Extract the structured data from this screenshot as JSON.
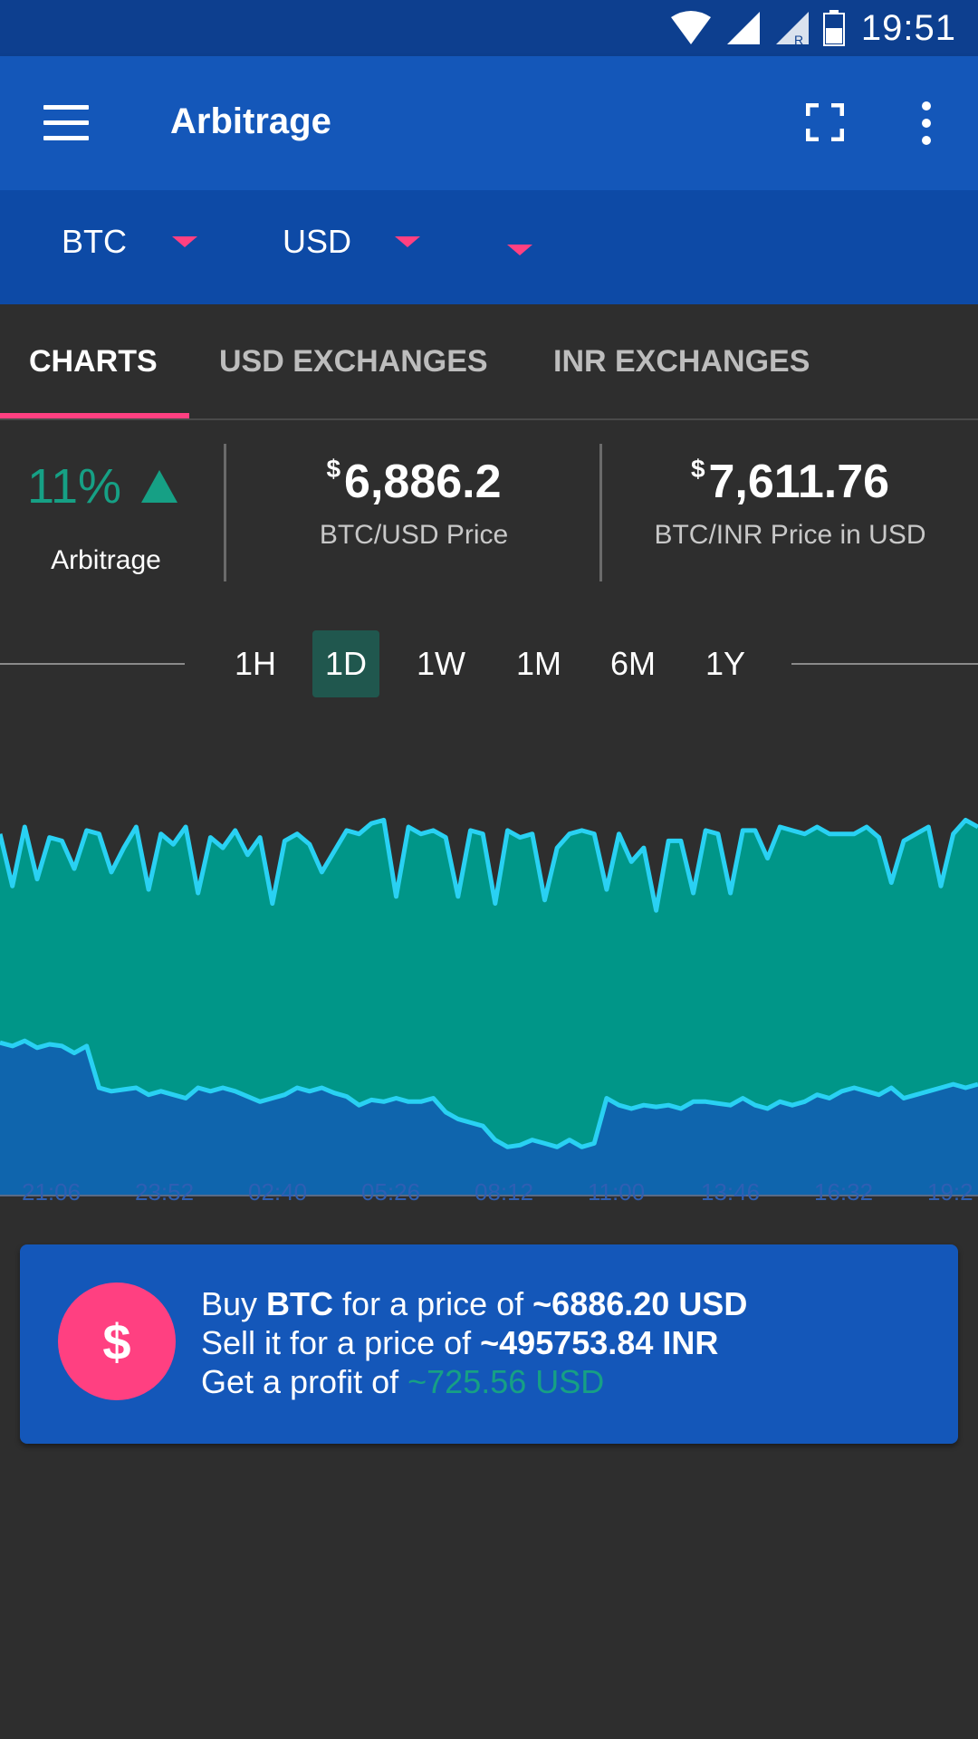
{
  "status_bar": {
    "time": "19:51"
  },
  "app_bar": {
    "title": "Arbitrage"
  },
  "selectors": {
    "coin": "BTC",
    "currency": "USD",
    "third": ""
  },
  "tabs": [
    {
      "label": "CHARTS",
      "active": true
    },
    {
      "label": "USD EXCHANGES",
      "active": false
    },
    {
      "label": "INR EXCHANGES",
      "active": false
    }
  ],
  "stats": {
    "arbitrage_pct": "11%",
    "arbitrage_label": "Arbitrage",
    "currency_symbol": "$",
    "usd_price": "6,886.2",
    "usd_price_label": "BTC/USD Price",
    "inr_price": "7,611.76",
    "inr_price_label": "BTC/INR Price in USD"
  },
  "ranges": [
    {
      "label": "1H",
      "active": false
    },
    {
      "label": "1D",
      "active": true
    },
    {
      "label": "1W",
      "active": false
    },
    {
      "label": "1M",
      "active": false
    },
    {
      "label": "6M",
      "active": false
    },
    {
      "label": "1Y",
      "active": false
    }
  ],
  "chart_data": {
    "type": "area",
    "x_labels": [
      "21:06",
      "23:52",
      "02:40",
      "05:26",
      "08:12",
      "11:00",
      "13:46",
      "16:32",
      "19:2"
    ],
    "series": [
      {
        "name": "",
        "color": "#29d1f3",
        "fill": "#009688",
        "values": [
          7600,
          7450,
          7620,
          7470,
          7590,
          7580,
          7500,
          7610,
          7600,
          7490,
          7560,
          7620,
          7440,
          7600,
          7570,
          7620,
          7430,
          7590,
          7560,
          7610,
          7540,
          7590,
          7400,
          7580,
          7600,
          7570,
          7490,
          7550,
          7610,
          7600,
          7630,
          7640,
          7420,
          7620,
          7600,
          7610,
          7590,
          7420,
          7610,
          7600,
          7400,
          7610,
          7590,
          7600,
          7410,
          7560,
          7600,
          7610,
          7600,
          7440,
          7600,
          7520,
          7560,
          7380,
          7580,
          7580,
          7430,
          7610,
          7600,
          7430,
          7610,
          7610,
          7530,
          7620,
          7610,
          7600,
          7620,
          7600,
          7600,
          7600,
          7620,
          7590,
          7460,
          7580,
          7600,
          7620,
          7450,
          7600,
          7640,
          7620
        ]
      },
      {
        "name": "",
        "color": "#29d1f3",
        "fill": "#0f65ad",
        "values": [
          7000,
          6990,
          7005,
          6985,
          6995,
          6990,
          6970,
          6990,
          6870,
          6860,
          6865,
          6870,
          6850,
          6860,
          6850,
          6840,
          6870,
          6860,
          6870,
          6860,
          6845,
          6830,
          6840,
          6850,
          6870,
          6860,
          6870,
          6855,
          6845,
          6820,
          6835,
          6830,
          6840,
          6830,
          6830,
          6840,
          6800,
          6780,
          6770,
          6760,
          6720,
          6700,
          6705,
          6720,
          6710,
          6700,
          6720,
          6700,
          6710,
          6840,
          6820,
          6810,
          6820,
          6815,
          6820,
          6810,
          6830,
          6830,
          6825,
          6820,
          6840,
          6820,
          6810,
          6830,
          6820,
          6830,
          6850,
          6840,
          6860,
          6870,
          6860,
          6850,
          6870,
          6840,
          6850,
          6860,
          6870,
          6880,
          6870,
          6880
        ]
      }
    ],
    "ylim": [
      6560,
      7680
    ],
    "grid": false,
    "legend": "none"
  },
  "card": {
    "icon": "$",
    "buy_prefix": "Buy ",
    "buy_coin": "BTC",
    "buy_mid": " for a price of ",
    "buy_price": "~6886.20 USD",
    "sell_prefix": "Sell it for a price of ",
    "sell_price": "~495753.84 INR",
    "profit_prefix": "Get a profit of ",
    "profit_value": "~725.56 USD"
  }
}
